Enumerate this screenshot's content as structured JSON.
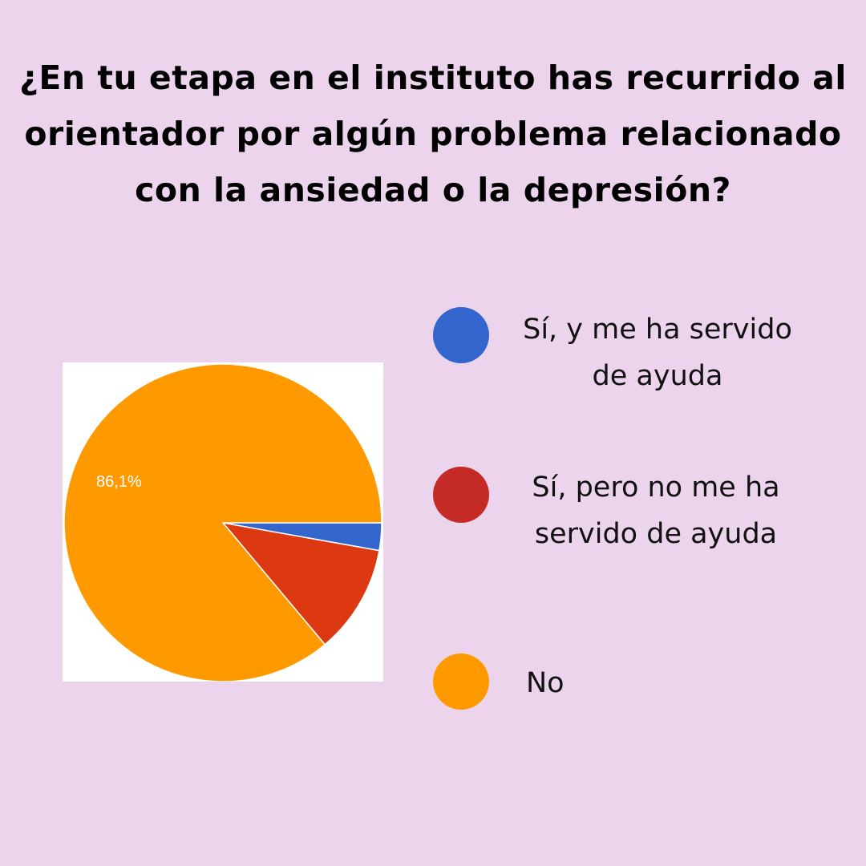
{
  "chart_data": {
    "type": "pie",
    "title": "¿En tu etapa en el instituto has recurrido al orientador por algún problema relacionado con la ansiedad o la depresión?",
    "title_lines": [
      "¿En tu etapa en el instituto has recurrido al",
      "orientador por algún problema relacionado",
      "con la ansiedad o la depresión?"
    ],
    "slices": [
      {
        "label": "Sí, y me ha servido\nde ayuda",
        "value": 2.8,
        "color": "#3366cc",
        "legend_color": "#3366cc"
      },
      {
        "label": "Sí, pero no me ha\nservido de ayuda",
        "value": 11.1,
        "color": "#dc3912",
        "legend_color": "#c42b27"
      },
      {
        "label": "No",
        "value": 86.1,
        "color": "#ff9900",
        "legend_color": "#ff9900",
        "data_label": "86,1%"
      }
    ],
    "start_angle_deg": 0,
    "direction": "clockwise",
    "legend_placement": "right"
  }
}
